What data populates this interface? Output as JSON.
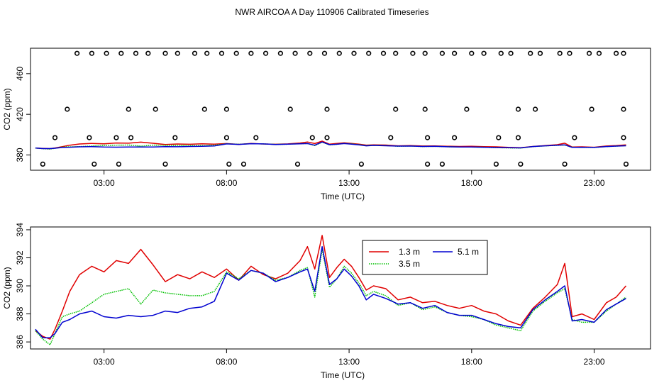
{
  "title": "NWR AIRCOA A  Day 110906  Calibrated Timeseries",
  "colors": {
    "red": "#e00000",
    "green": "#00c000",
    "blue": "#0000d0",
    "black": "#000000"
  },
  "chart_data": [
    {
      "type": "scatter",
      "xlabel": "Time (UTC)",
      "ylabel": "CO2 (ppm)",
      "xlim": [
        0,
        25.3
      ],
      "ylim": [
        365,
        485
      ],
      "xticks": [
        3,
        8,
        13,
        18,
        23
      ],
      "xtick_labels": [
        "03:00",
        "08:00",
        "13:00",
        "18:00",
        "23:00"
      ],
      "yticks": [
        380,
        420,
        460
      ],
      "ytick_labels": [
        "380",
        "420",
        "460"
      ],
      "reference_points": {
        "x": [
          1.9,
          3.1,
          4.3,
          5.5,
          6.7,
          7.8,
          9.0,
          10.2,
          11.4,
          12.6,
          13.8,
          14.9,
          16.1,
          17.3,
          18.5,
          19.6,
          20.8,
          22.0,
          23.2,
          24.2,
          2.5,
          3.7,
          4.8,
          6.0,
          7.2,
          8.4,
          9.6,
          10.8,
          12.0,
          13.2,
          14.4,
          15.6,
          16.8,
          18.0,
          19.2,
          20.4,
          21.6,
          22.8,
          23.9,
          1.5,
          4.0,
          5.1,
          7.1,
          8.0,
          10.6,
          12.1,
          14.9,
          16.1,
          17.8,
          19.9,
          20.6,
          22.9,
          24.2,
          1.0,
          2.4,
          3.5,
          4.1,
          5.9,
          8.0,
          9.2,
          11.5,
          12.1,
          14.7,
          16.2,
          17.3,
          19.1,
          19.9,
          22.2,
          24.2,
          0.5,
          2.6,
          3.6,
          5.5,
          8.1,
          8.7,
          10.9,
          13.5,
          16.2,
          16.8,
          19.0,
          20.0,
          21.8,
          24.3
        ],
        "y": [
          480,
          480,
          480,
          480,
          480,
          480,
          480,
          480,
          480,
          480,
          480,
          480,
          480,
          480,
          480,
          480,
          480,
          480,
          480,
          480,
          480,
          480,
          480,
          480,
          480,
          480,
          480,
          480,
          480,
          480,
          480,
          480,
          480,
          480,
          480,
          480,
          480,
          480,
          480,
          425,
          425,
          425,
          425,
          425,
          425,
          425,
          425,
          425,
          425,
          425,
          425,
          425,
          425,
          397,
          397,
          397,
          397,
          397,
          397,
          397,
          397,
          397,
          397,
          397,
          397,
          397,
          397,
          397,
          397,
          371,
          371,
          371,
          371,
          371,
          371,
          371,
          371,
          371,
          371,
          371,
          371,
          371,
          371
        ]
      },
      "series_note": "low-range series overlaid from chart 2 (red / green / blue)"
    },
    {
      "type": "line",
      "xlabel": "Time (UTC)",
      "ylabel": "CO2 (ppm)",
      "xlim": [
        0,
        25.3
      ],
      "ylim": [
        385.5,
        394.2
      ],
      "xticks": [
        3,
        8,
        13,
        18,
        23
      ],
      "xtick_labels": [
        "03:00",
        "08:00",
        "13:00",
        "18:00",
        "23:00"
      ],
      "yticks": [
        386,
        388,
        390,
        392,
        394
      ],
      "ytick_labels": [
        "386",
        "388",
        "390",
        "392",
        "394"
      ],
      "legend": {
        "position": "top-center",
        "entries": [
          {
            "label": "1.3 m",
            "color": "#e00000",
            "style": "solid"
          },
          {
            "label": "3.5 m",
            "color": "#00c000",
            "style": "dotted"
          },
          {
            "label": "5.1 m",
            "color": "#0000d0",
            "style": "solid"
          }
        ]
      },
      "x": [
        0.2,
        0.5,
        0.8,
        1.0,
        1.3,
        1.6,
        2.0,
        2.5,
        3.0,
        3.5,
        4.0,
        4.5,
        5.0,
        5.5,
        6.0,
        6.5,
        7.0,
        7.5,
        8.0,
        8.5,
        9.0,
        9.5,
        10.0,
        10.5,
        11.0,
        11.3,
        11.6,
        11.9,
        12.2,
        12.5,
        12.8,
        13.1,
        13.4,
        13.7,
        14.0,
        14.5,
        15.0,
        15.5,
        16.0,
        16.5,
        17.0,
        17.5,
        18.0,
        18.5,
        19.0,
        19.5,
        20.0,
        20.5,
        21.0,
        21.5,
        21.8,
        22.1,
        22.5,
        23.0,
        23.5,
        23.9,
        24.3
      ],
      "series": [
        {
          "name": "1.3 m",
          "values": [
            386.8,
            386.4,
            386.2,
            386.9,
            388.2,
            389.6,
            390.8,
            391.4,
            391.0,
            391.8,
            391.6,
            392.6,
            391.5,
            390.3,
            390.8,
            390.5,
            391.0,
            390.6,
            391.2,
            390.4,
            391.4,
            390.8,
            390.5,
            390.9,
            391.8,
            392.8,
            391.2,
            393.6,
            390.6,
            391.3,
            391.9,
            391.4,
            390.6,
            389.7,
            390.0,
            389.8,
            389.0,
            389.2,
            388.8,
            388.9,
            388.6,
            388.4,
            388.6,
            388.2,
            388.0,
            387.5,
            387.2,
            388.4,
            389.2,
            390.1,
            391.6,
            387.8,
            388.0,
            387.6,
            388.8,
            389.2,
            390.0
          ]
        },
        {
          "name": "3.5 m",
          "values": [
            386.8,
            386.2,
            385.8,
            386.6,
            387.8,
            388.0,
            388.2,
            388.8,
            389.4,
            389.6,
            389.8,
            388.7,
            389.7,
            389.5,
            389.4,
            389.3,
            389.3,
            389.6,
            391.0,
            390.5,
            391.1,
            390.9,
            390.4,
            390.6,
            391.1,
            391.3,
            389.2,
            392.6,
            389.9,
            390.5,
            391.4,
            390.9,
            390.2,
            389.3,
            389.6,
            389.3,
            388.6,
            388.8,
            388.3,
            388.5,
            388.1,
            387.9,
            387.8,
            387.6,
            387.2,
            387.0,
            386.8,
            388.2,
            388.9,
            389.5,
            389.8,
            387.6,
            387.4,
            387.4,
            388.2,
            388.7,
            389.2
          ]
        },
        {
          "name": "5.1 m",
          "values": [
            386.9,
            386.3,
            386.3,
            386.6,
            387.4,
            387.6,
            388.0,
            388.2,
            387.8,
            387.7,
            387.9,
            387.8,
            387.9,
            388.2,
            388.1,
            388.4,
            388.5,
            388.9,
            390.9,
            390.4,
            391.1,
            390.9,
            390.3,
            390.6,
            391.0,
            391.2,
            389.6,
            392.8,
            390.1,
            390.5,
            391.2,
            390.7,
            390.0,
            389.0,
            389.4,
            389.1,
            388.7,
            388.8,
            388.4,
            388.6,
            388.1,
            387.9,
            387.9,
            387.6,
            387.3,
            387.1,
            387.0,
            388.3,
            389.0,
            389.6,
            390.0,
            387.5,
            387.6,
            387.4,
            388.3,
            388.7,
            389.1
          ]
        }
      ]
    }
  ]
}
